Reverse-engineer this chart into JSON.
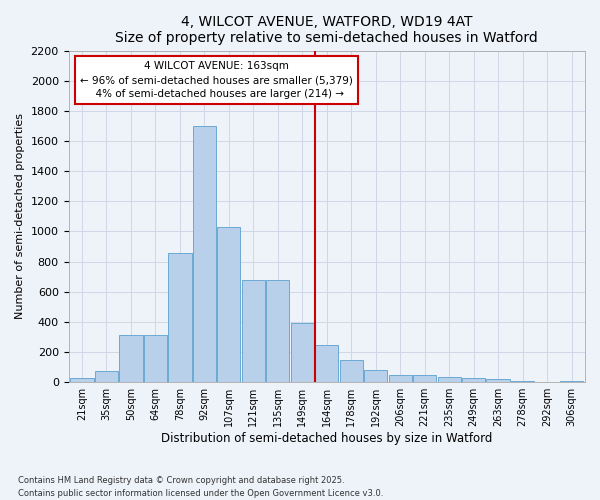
{
  "title1": "4, WILCOT AVENUE, WATFORD, WD19 4AT",
  "title2": "Size of property relative to semi-detached houses in Watford",
  "xlabel": "Distribution of semi-detached houses by size in Watford",
  "ylabel": "Number of semi-detached properties",
  "bins": [
    "21sqm",
    "35sqm",
    "50sqm",
    "64sqm",
    "78sqm",
    "92sqm",
    "107sqm",
    "121sqm",
    "135sqm",
    "149sqm",
    "164sqm",
    "178sqm",
    "192sqm",
    "206sqm",
    "221sqm",
    "235sqm",
    "249sqm",
    "263sqm",
    "278sqm",
    "292sqm",
    "306sqm"
  ],
  "bar_heights": [
    25,
    75,
    310,
    310,
    860,
    1700,
    1030,
    675,
    675,
    395,
    250,
    150,
    80,
    50,
    45,
    35,
    30,
    20,
    5,
    0,
    10
  ],
  "bar_color": "#b8d0ea",
  "bar_edge_color": "#6aaad4",
  "vline_bin_index": 10,
  "vline_label": "4 WILCOT AVENUE: 163sqm",
  "pct_smaller": 96,
  "n_smaller": 5379,
  "pct_larger": 4,
  "n_larger": 214,
  "annotation_box_color": "#ffffff",
  "annotation_box_edge": "#cc0000",
  "vline_color": "#cc0000",
  "ylim": [
    0,
    2200
  ],
  "yticks": [
    0,
    200,
    400,
    600,
    800,
    1000,
    1200,
    1400,
    1600,
    1800,
    2000,
    2200
  ],
  "footer1": "Contains HM Land Registry data © Crown copyright and database right 2025.",
  "footer2": "Contains public sector information licensed under the Open Government Licence v3.0.",
  "bg_color": "#eef2f9",
  "grid_color": "#d0d8e8"
}
